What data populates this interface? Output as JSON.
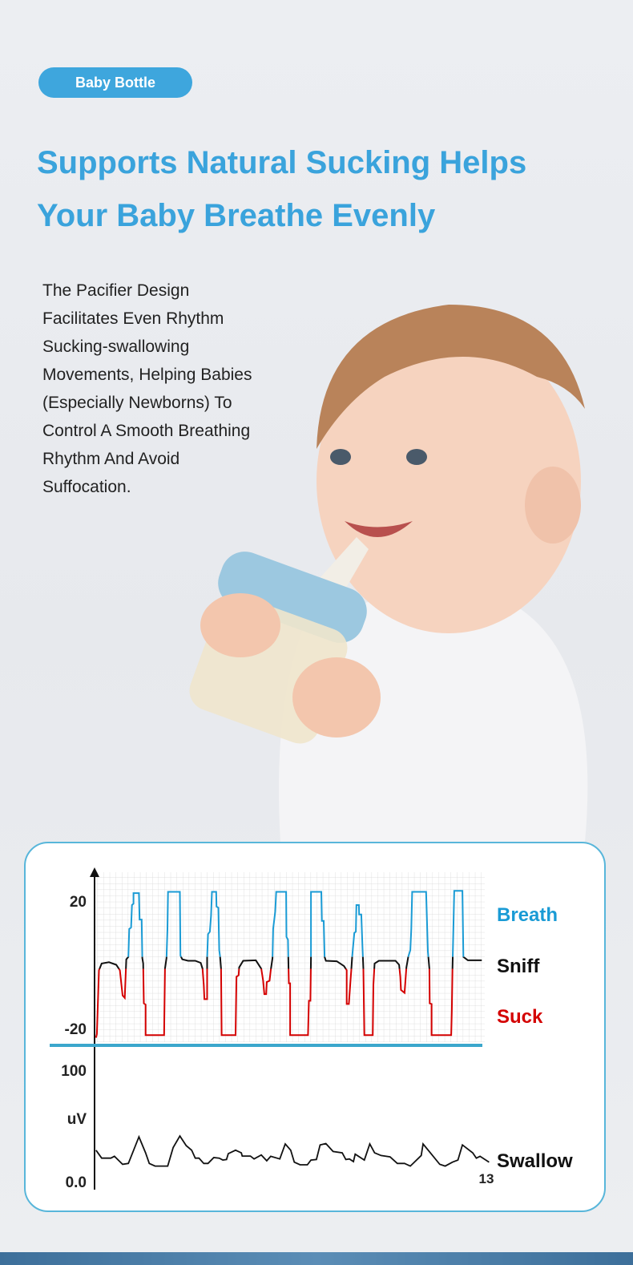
{
  "badge": {
    "label": "Baby Bottle"
  },
  "headline": {
    "line1": "Supports Natural Sucking Helps",
    "line2": "Your Baby Breathe Evenly"
  },
  "body": {
    "lines": [
      "The Pacifier Design",
      "Facilitates Even Rhythm",
      "Sucking-swallowing",
      "Movements, Helping Babies",
      "(Especially Newborns) To",
      "Control A Smooth Breathing",
      "Rhythm And Avoid",
      "Suffocation."
    ]
  },
  "colors": {
    "accent": "#3aa3dc",
    "breath": "#1a9bd5",
    "sniff": "#111111",
    "suck": "#d40000",
    "divider": "#3ba7cc"
  },
  "chart_data": [
    {
      "type": "line",
      "title": "",
      "ytick_labels": [
        "20",
        "-20"
      ],
      "grid": true,
      "legend": [
        "Breath",
        "Sniff",
        "Suck"
      ],
      "legend_placement": "right",
      "trace": [
        [
          0.02,
          -22.9
        ],
        [
          0.05,
          -21.7
        ],
        [
          0.12,
          -1.7
        ],
        [
          0.21,
          0.4
        ],
        [
          0.45,
          0.8
        ],
        [
          0.69,
          0
        ],
        [
          0.81,
          -1.7
        ],
        [
          0.9,
          -9.6
        ],
        [
          0.97,
          -10.4
        ],
        [
          1.02,
          1.7
        ],
        [
          1.09,
          2.5
        ],
        [
          1.12,
          11.25
        ],
        [
          1.18,
          11.7
        ],
        [
          1.21,
          18.75
        ],
        [
          1.26,
          19.2
        ],
        [
          1.26,
          22.5
        ],
        [
          1.44,
          22.5
        ],
        [
          1.46,
          14.2
        ],
        [
          1.53,
          14.2
        ],
        [
          1.55,
          2.1
        ],
        [
          1.58,
          0.4
        ],
        [
          1.6,
          -12.1
        ],
        [
          1.66,
          -12.5
        ],
        [
          1.66,
          -22.1
        ],
        [
          2.27,
          -22.1
        ],
        [
          2.3,
          -1.25
        ],
        [
          2.35,
          2.1
        ],
        [
          2.38,
          11.25
        ],
        [
          2.4,
          22.9
        ],
        [
          2.79,
          22.9
        ],
        [
          2.81,
          2.9
        ],
        [
          2.87,
          1.7
        ],
        [
          3.06,
          1.25
        ],
        [
          3.3,
          1.25
        ],
        [
          3.48,
          0.6
        ],
        [
          3.54,
          -1.25
        ],
        [
          3.58,
          -6.3
        ],
        [
          3.6,
          -10.8
        ],
        [
          3.69,
          -10.8
        ],
        [
          3.69,
          2.1
        ],
        [
          3.72,
          9.6
        ],
        [
          3.78,
          10.4
        ],
        [
          3.82,
          15.4
        ],
        [
          3.85,
          22.9
        ],
        [
          3.99,
          22.9
        ],
        [
          4.0,
          18.3
        ],
        [
          4.06,
          17.9
        ],
        [
          4.09,
          4.6
        ],
        [
          4.12,
          2.5
        ],
        [
          4.15,
          -1.25
        ],
        [
          4.17,
          -22.1
        ],
        [
          4.63,
          -22.1
        ],
        [
          4.66,
          -3.75
        ],
        [
          4.73,
          -3.3
        ],
        [
          4.75,
          -0.8
        ],
        [
          4.88,
          1.25
        ],
        [
          5.3,
          1.4
        ],
        [
          5.48,
          -1.25
        ],
        [
          5.54,
          -5.0
        ],
        [
          5.58,
          -9.2
        ],
        [
          5.64,
          -9.2
        ],
        [
          5.66,
          -5.4
        ],
        [
          5.75,
          -5.0
        ],
        [
          5.79,
          -1.7
        ],
        [
          5.85,
          2.1
        ],
        [
          5.87,
          11.25
        ],
        [
          5.94,
          16.7
        ],
        [
          5.97,
          22.9
        ],
        [
          6.3,
          22.9
        ],
        [
          6.31,
          8.75
        ],
        [
          6.36,
          7.9
        ],
        [
          6.37,
          2.5
        ],
        [
          6.39,
          -5.8
        ],
        [
          6.43,
          -5.8
        ],
        [
          6.43,
          -22.1
        ],
        [
          7.02,
          -22.1
        ],
        [
          7.05,
          -11.3
        ],
        [
          7.1,
          -11.3
        ],
        [
          7.12,
          2.1
        ],
        [
          7.12,
          22.9
        ],
        [
          7.46,
          22.9
        ],
        [
          7.48,
          13.75
        ],
        [
          7.54,
          13.75
        ],
        [
          7.57,
          2.5
        ],
        [
          7.61,
          1.25
        ],
        [
          7.97,
          1.1
        ],
        [
          8.21,
          -0.4
        ],
        [
          8.3,
          -1.7
        ],
        [
          8.3,
          -12.3
        ],
        [
          8.37,
          -12.3
        ],
        [
          8.42,
          -5.4
        ],
        [
          8.45,
          -1.7
        ],
        [
          8.48,
          2.5
        ],
        [
          8.55,
          10
        ],
        [
          8.6,
          10.4
        ],
        [
          8.62,
          18.75
        ],
        [
          8.7,
          18.75
        ],
        [
          8.71,
          15.8
        ],
        [
          8.78,
          15.8
        ],
        [
          8.82,
          5.4
        ],
        [
          8.85,
          -1.25
        ],
        [
          8.88,
          -22.1
        ],
        [
          9.16,
          -22.1
        ],
        [
          9.18,
          -6.3
        ],
        [
          9.22,
          0.4
        ],
        [
          9.36,
          1.25
        ],
        [
          9.91,
          1.25
        ],
        [
          10.03,
          0
        ],
        [
          10.07,
          -3.75
        ],
        [
          10.09,
          -7.9
        ],
        [
          10.21,
          -8.8
        ],
        [
          10.27,
          -0.8
        ],
        [
          10.33,
          2.5
        ],
        [
          10.4,
          4.6
        ],
        [
          10.43,
          11.25
        ],
        [
          10.46,
          22.9
        ],
        [
          10.92,
          22.9
        ],
        [
          10.98,
          4.2
        ],
        [
          11.03,
          -1.25
        ],
        [
          11.04,
          -12.1
        ],
        [
          11.1,
          -12.3
        ],
        [
          11.1,
          -22.1
        ],
        [
          11.75,
          -22.1
        ],
        [
          11.77,
          -14.2
        ],
        [
          11.79,
          -1.25
        ],
        [
          11.83,
          15.4
        ],
        [
          11.85,
          23.2
        ],
        [
          12.12,
          23.2
        ],
        [
          12.15,
          2.5
        ],
        [
          12.3,
          1.4
        ],
        [
          12.76,
          1.4
        ]
      ]
    },
    {
      "type": "line",
      "title": "",
      "ylabel": "uV",
      "ytick_labels": [
        "100",
        "0.0"
      ],
      "xtick_labels": [
        "13"
      ],
      "legend": [
        "Swallow"
      ],
      "ylim": [
        0,
        100
      ],
      "xlim": [
        0,
        13
      ],
      "trace": [
        [
          0.02,
          27.7
        ],
        [
          0.21,
          20.5
        ],
        [
          0.51,
          20.5
        ],
        [
          0.63,
          22.2
        ],
        [
          0.9,
          14.9
        ],
        [
          1.09,
          15.7
        ],
        [
          1.44,
          39.8
        ],
        [
          1.66,
          25.3
        ],
        [
          1.78,
          15.7
        ],
        [
          1.97,
          13.3
        ],
        [
          2.39,
          13.3
        ],
        [
          2.57,
          30.1
        ],
        [
          2.79,
          40.5
        ],
        [
          3.0,
          31.8
        ],
        [
          3.18,
          27.7
        ],
        [
          3.3,
          20.5
        ],
        [
          3.42,
          20.5
        ],
        [
          3.58,
          15.7
        ],
        [
          3.72,
          15.7
        ],
        [
          3.91,
          21
        ],
        [
          4.09,
          20.5
        ],
        [
          4.21,
          18.8
        ],
        [
          4.33,
          19.3
        ],
        [
          4.39,
          24.6
        ],
        [
          4.63,
          27.7
        ],
        [
          4.82,
          25.3
        ],
        [
          4.85,
          22.4
        ],
        [
          5.12,
          22.4
        ],
        [
          5.24,
          19.8
        ],
        [
          5.48,
          23.4
        ],
        [
          5.66,
          18.1
        ],
        [
          5.79,
          22.2
        ],
        [
          6.09,
          19.8
        ],
        [
          6.27,
          33.3
        ],
        [
          6.45,
          27.7
        ],
        [
          6.57,
          16.9
        ],
        [
          6.76,
          14.5
        ],
        [
          7.0,
          14.5
        ],
        [
          7.12,
          18.8
        ],
        [
          7.3,
          19.3
        ],
        [
          7.42,
          32.5
        ],
        [
          7.61,
          33.7
        ],
        [
          7.85,
          26.5
        ],
        [
          8.15,
          25.3
        ],
        [
          8.27,
          19.3
        ],
        [
          8.39,
          19.8
        ],
        [
          8.52,
          17.4
        ],
        [
          8.58,
          24.1
        ],
        [
          8.88,
          18.8
        ],
        [
          9.06,
          33.3
        ],
        [
          9.22,
          25.3
        ],
        [
          9.43,
          22.9
        ],
        [
          9.73,
          21.7
        ],
        [
          9.97,
          15.7
        ],
        [
          10.21,
          15.7
        ],
        [
          10.4,
          13.3
        ],
        [
          10.76,
          22.9
        ],
        [
          10.82,
          33.3
        ],
        [
          11.06,
          25.3
        ],
        [
          11.37,
          14.9
        ],
        [
          11.55,
          13.3
        ],
        [
          11.79,
          16.9
        ],
        [
          11.97,
          18.8
        ],
        [
          12.12,
          32.5
        ],
        [
          12.46,
          25.3
        ],
        [
          12.58,
          20.5
        ],
        [
          12.7,
          22.2
        ],
        [
          13.0,
          16.9
        ]
      ]
    }
  ]
}
